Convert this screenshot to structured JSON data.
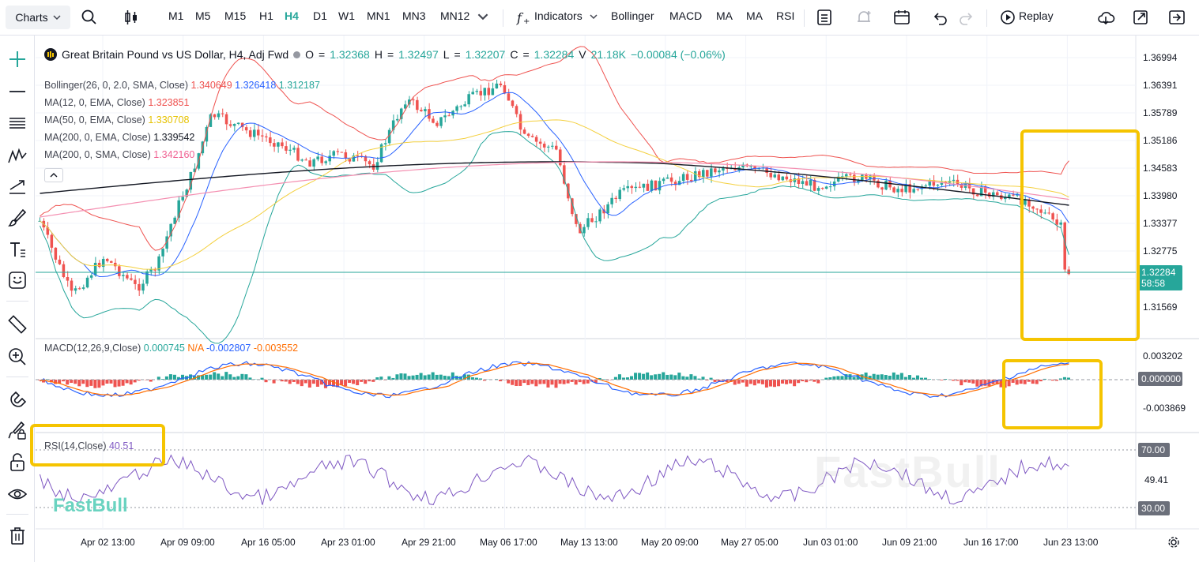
{
  "toolbar": {
    "charts_label": "Charts",
    "intervals": [
      "M1",
      "M5",
      "M15",
      "H1",
      "H4",
      "D1",
      "W1",
      "MN1",
      "MN3",
      "MN12"
    ],
    "active_interval": "H4",
    "indicators_label": "Indicators",
    "quick_indicators": [
      "Bollinger",
      "MACD",
      "MA",
      "MA",
      "RSI"
    ],
    "replay_label": "Replay"
  },
  "symbol": {
    "title": "Great Britain Pound vs US Dollar, H4, Adj Fwd",
    "open_label": "O",
    "open": "1.32368",
    "high_label": "H",
    "high": "1.32497",
    "low_label": "L",
    "low": "1.32207",
    "close_label": "C",
    "close": "1.32284",
    "volume_label": "V",
    "volume": "21.18K",
    "change": "−0.00084 (−0.06%)"
  },
  "indicators": {
    "bollinger": {
      "name": "Bollinger(26, 0, 2.0, SMA, Close)",
      "upper": "1.340649",
      "mid": "1.326418",
      "lower": "1.312187"
    },
    "ma12": {
      "name": "MA(12, 0, EMA, Close)",
      "value": "1.323851"
    },
    "ma50": {
      "name": "MA(50, 0, EMA, Close)",
      "value": "1.330708"
    },
    "ma200ema": {
      "name": "MA(200, 0, EMA, Close)",
      "value": "1.339542"
    },
    "ma200sma": {
      "name": "MA(200, 0, SMA, Close)",
      "value": "1.342160"
    },
    "macd": {
      "name": "MACD(12,26,9,Close)",
      "hist": "0.000745",
      "na": "N/A",
      "macd": "-0.002807",
      "signal": "-0.003552"
    },
    "rsi": {
      "name": "RSI(14,Close)",
      "value": "40.51"
    }
  },
  "price_axis": [
    "1.36994",
    "1.36391",
    "1.35789",
    "1.35186",
    "1.34583",
    "1.33980",
    "1.33377",
    "1.32775",
    "1.31569"
  ],
  "current_price": "1.32284",
  "countdown": "58:58",
  "macd_axis": [
    "0.003202",
    "0.000000",
    "-0.003869"
  ],
  "rsi_axis": {
    "upper": "70.00",
    "mid": "49.41",
    "lower": "30.00"
  },
  "dates": [
    "Apr 02 13:00",
    "Apr 09 09:00",
    "Apr 16 05:00",
    "Apr 23 01:00",
    "Apr 29 21:00",
    "May 06 17:00",
    "May 13 13:00",
    "May 20 09:00",
    "May 27 05:00",
    "Jun 03 01:00",
    "Jun 09 21:00",
    "Jun 16 17:00",
    "Jun 23 13:00"
  ],
  "watermark": "FastBull",
  "colors": {
    "up": "#26a69a",
    "down": "#ef5350",
    "boll_upper": "#ef5350",
    "boll_mid": "#2962ff",
    "boll_lower": "#26a69a",
    "ma50": "#f4d03f",
    "ma200ema": "#131722",
    "ma200sma": "#f48fb1",
    "highlight": "#f5c400",
    "rsi": "#7e57c2",
    "macd_line": "#2962ff",
    "signal_line": "#ff6d00"
  }
}
